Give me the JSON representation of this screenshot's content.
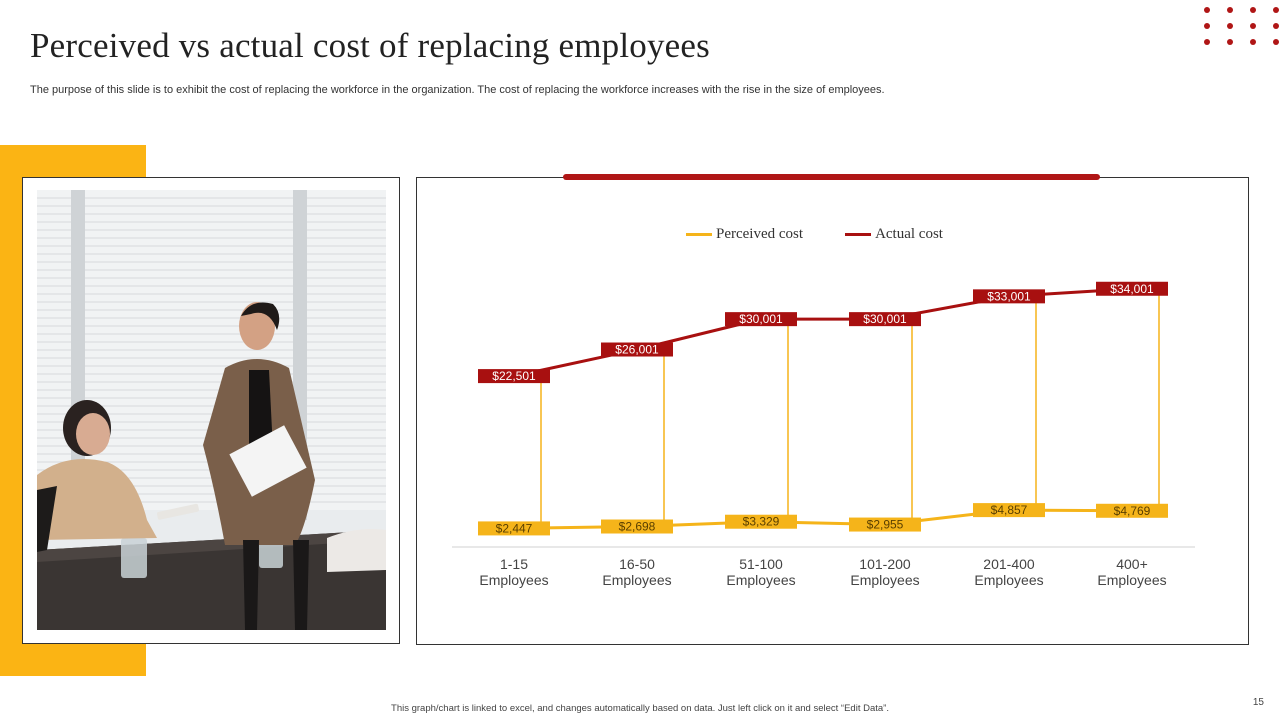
{
  "slide": {
    "title": "Perceived vs actual cost of replacing employees",
    "subtitle": "The purpose of this slide is to exhibit the cost of replacing the workforce in the organization. The cost of replacing the workforce increases with the rise in the size of employees.",
    "footer": "This graph/chart is linked to excel, and changes automatically based on data. Just left click on it and select “Edit Data”.",
    "page_number": "15"
  },
  "colors": {
    "accent_red": "#b01616",
    "accent_yellow": "#fbb414",
    "perceived": "#f5b41a",
    "actual": "#a81010"
  },
  "photo": {
    "icon": "meeting-photo"
  },
  "chart_data": {
    "type": "line",
    "categories": [
      [
        "1-15",
        "Employees"
      ],
      [
        "16-50",
        "Employees"
      ],
      [
        "51-100",
        "Employees"
      ],
      [
        "101-200",
        "Employees"
      ],
      [
        "201-400",
        "Employees"
      ],
      [
        "400+",
        "Employees"
      ]
    ],
    "series": [
      {
        "name": "Perceived cost",
        "values": [
          2447,
          2698,
          3329,
          2955,
          4857,
          4769
        ],
        "labels": [
          "$2,447",
          "$2,698",
          "$3,329",
          "$2,955",
          "$4,857",
          "$4,769"
        ]
      },
      {
        "name": "Actual cost",
        "values": [
          22501,
          26001,
          30001,
          30001,
          33001,
          34001
        ],
        "labels": [
          "$22,501",
          "$26,001",
          "$30,001",
          "$30,001",
          "$33,001",
          "$34,001"
        ]
      }
    ],
    "ylim": [
      0,
      42000
    ],
    "legend_position": "top",
    "grid": false,
    "drop_lines": true
  }
}
